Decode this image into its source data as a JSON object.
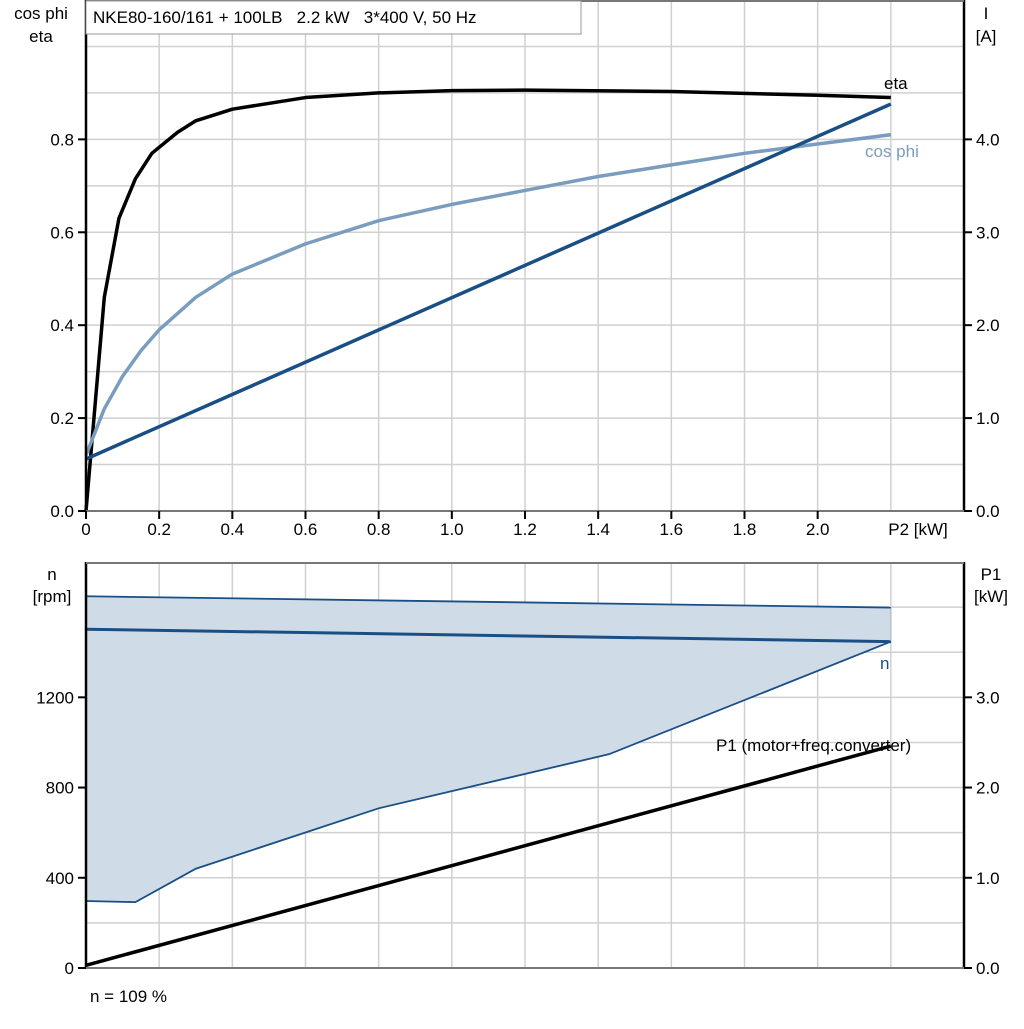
{
  "colors": {
    "eta": "#000000",
    "cos_phi": "#7a9dbf",
    "current": "#1a4f85",
    "speed": "#1a4f85",
    "speed_band": "#cfdbe7",
    "p1": "#000000",
    "grid": "#d0d0d0"
  },
  "chart_data": [
    {
      "type": "line",
      "title": "NKE80-160/161 + 100LB   2.2 kW   3*400 V, 50 Hz",
      "xlabel": "P2 [kW]",
      "ylabel_left": [
        "cos phi",
        "eta"
      ],
      "ylabel_right": [
        "I",
        "[A]"
      ],
      "xlim": [
        0,
        2.4
      ],
      "ylim_left": [
        0,
        1.1
      ],
      "ylim_right": [
        0,
        5.5
      ],
      "grid": true,
      "x_ticks": [
        "0",
        "0.2",
        "0.4",
        "0.6",
        "0.8",
        "1.0",
        "1.2",
        "1.4",
        "1.6",
        "1.8",
        "2.0"
      ],
      "x_tick_values": [
        0,
        0.2,
        0.4,
        0.6,
        0.8,
        1.0,
        1.2,
        1.4,
        1.6,
        1.8,
        2.0
      ],
      "y_left_ticks": [
        "0.0",
        "0.2",
        "0.4",
        "0.6",
        "0.8"
      ],
      "y_left_tick_values": [
        0,
        0.2,
        0.4,
        0.6,
        0.8
      ],
      "y_right_ticks": [
        "0.0",
        "1.0",
        "2.0",
        "3.0",
        "4.0"
      ],
      "y_right_tick_values": [
        0,
        1,
        2,
        3,
        4
      ],
      "series": [
        {
          "name": "eta",
          "axis": "left",
          "x": [
            0,
            0.05,
            0.09,
            0.135,
            0.18,
            0.25,
            0.3,
            0.4,
            0.6,
            0.8,
            1.0,
            1.2,
            1.6,
            2.0,
            2.2
          ],
          "y": [
            0,
            0.46,
            0.63,
            0.715,
            0.77,
            0.815,
            0.84,
            0.865,
            0.89,
            0.9,
            0.905,
            0.906,
            0.903,
            0.895,
            0.89
          ]
        },
        {
          "name": "cos phi",
          "axis": "left",
          "x": [
            0,
            0.05,
            0.1,
            0.15,
            0.2,
            0.3,
            0.4,
            0.6,
            0.8,
            1.0,
            1.2,
            1.4,
            1.6,
            1.8,
            2.0,
            2.2
          ],
          "y": [
            0.12,
            0.22,
            0.29,
            0.345,
            0.39,
            0.46,
            0.51,
            0.575,
            0.625,
            0.66,
            0.69,
            0.72,
            0.745,
            0.77,
            0.79,
            0.81
          ]
        },
        {
          "name": "I",
          "axis": "right",
          "x": [
            0,
            2.2
          ],
          "y": [
            0.56,
            4.38
          ]
        }
      ]
    },
    {
      "type": "line",
      "xlabel": "",
      "ylabel_left": [
        "n",
        "[rpm]"
      ],
      "ylabel_right": [
        "P1",
        "[kW]"
      ],
      "xlim": [
        0,
        2.4
      ],
      "ylim_left": [
        0,
        1800
      ],
      "ylim_right": [
        0,
        4.5
      ],
      "grid": true,
      "y_left_ticks": [
        "0",
        "400",
        "800",
        "1200"
      ],
      "y_left_tick_values": [
        0,
        400,
        800,
        1200
      ],
      "y_right_ticks": [
        "0.0",
        "1.0",
        "2.0",
        "3.0"
      ],
      "y_right_tick_values": [
        0,
        1,
        2,
        3
      ],
      "band": {
        "upper": {
          "x": [
            0,
            2.2
          ],
          "y": [
            1648,
            1598
          ]
        },
        "lower": {
          "x": [
            0,
            0.135,
            0.3,
            0.8,
            1.43,
            2.2
          ],
          "y": [
            297,
            292,
            440,
            708,
            948,
            1447
          ]
        }
      },
      "series": [
        {
          "name": "n",
          "axis": "left",
          "x": [
            0,
            2.2
          ],
          "y": [
            1502,
            1447
          ]
        },
        {
          "name": "P1 (motor+freq.converter)",
          "axis": "right",
          "x": [
            0,
            2.2
          ],
          "y": [
            0.03,
            2.46
          ]
        }
      ],
      "annotation": "n = 109 %"
    }
  ]
}
